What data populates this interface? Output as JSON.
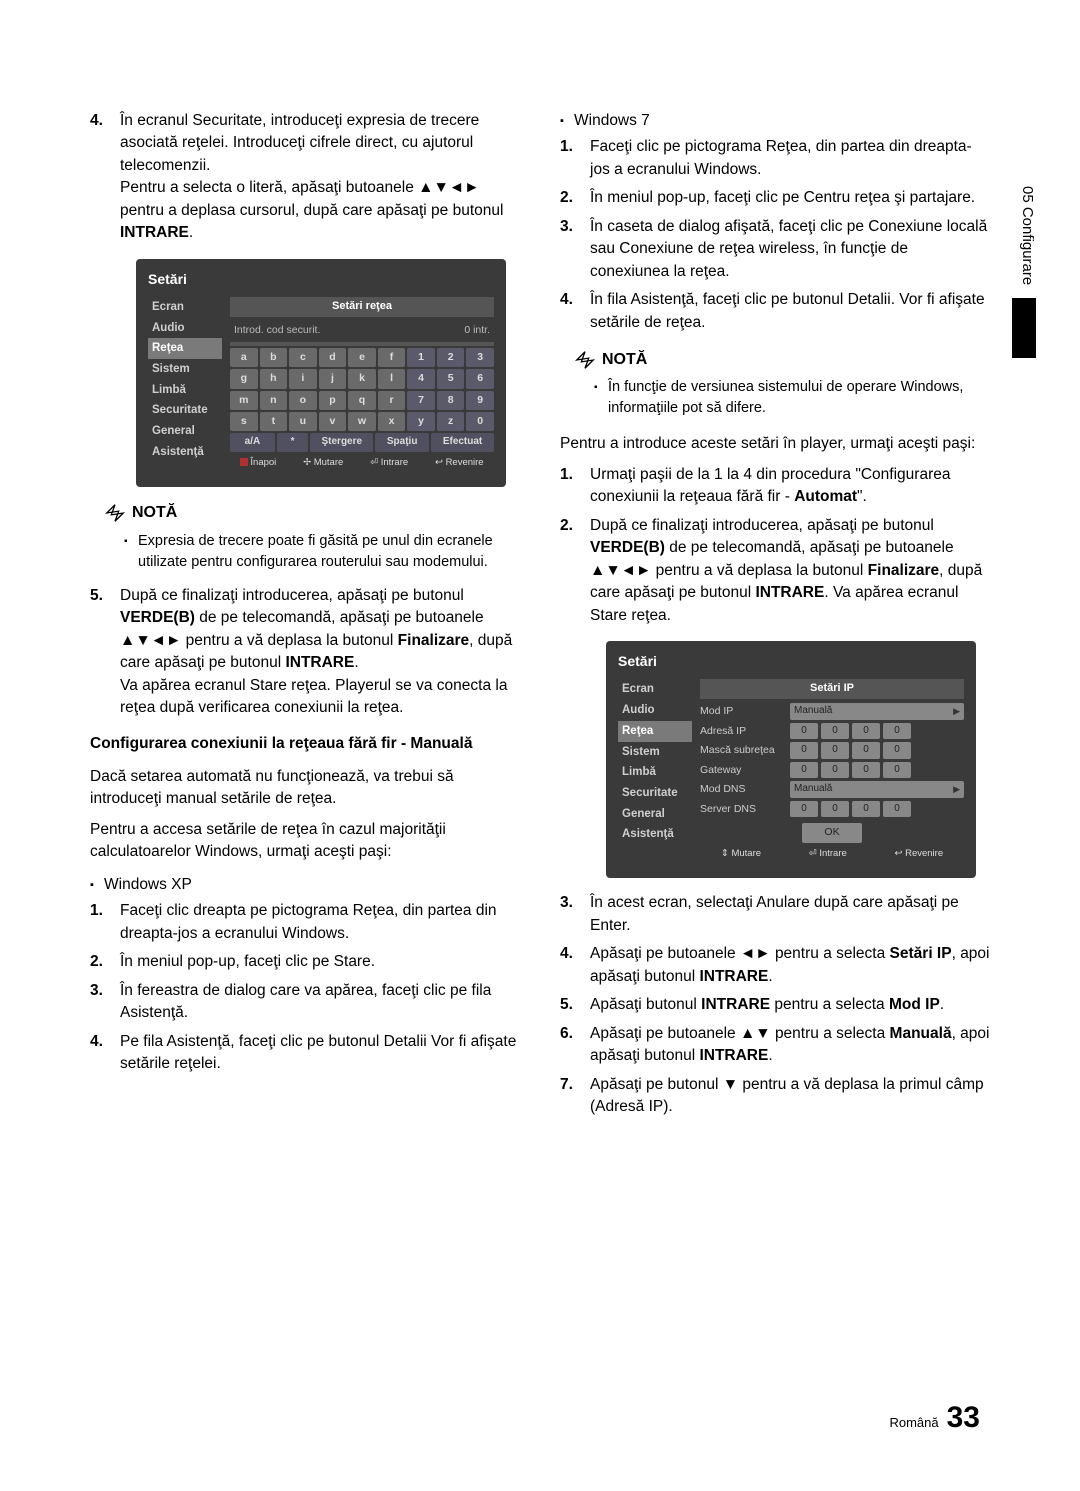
{
  "side_tab": "05  Configurare",
  "footer": {
    "lang": "Română",
    "page": "33"
  },
  "left": {
    "step4_num": "4.",
    "step4": "În ecranul Securitate, introduceţi expresia de trecere asociată reţelei. Introduceţi cifrele direct, cu ajutorul telecomenzii.",
    "step4b": "Pentru a selecta o literă, apăsaţi butoanele ▲▼◄► pentru a deplasa cursorul, după care apăsaţi pe butonul ",
    "step4b_bold": "INTRARE",
    "period": ".",
    "note_label": "NOTĂ",
    "note_body": "Expresia de trecere poate fi găsită pe unul din ecranele utilizate pentru configurarea routerului sau modemului.",
    "step5_num": "5.",
    "step5a": "După ce finalizaţi introducerea, apăsaţi pe butonul ",
    "step5_bold1": "VERDE(B)",
    "step5b": " de pe telecomandă, apăsaţi pe butoanele ▲▼◄► pentru a vă deplasa la butonul ",
    "step5_bold2": "Finalizare",
    "step5c": ", după care apăsaţi pe butonul ",
    "step5_bold3": "INTRARE",
    "step5d": "Va apărea ecranul Stare reţea. Playerul se va conecta la reţea după verificarea conexiunii la reţea.",
    "sub_manual": "Configurarea conexiunii la reţeaua fără fir - Manuală",
    "manual_p1": "Dacă setarea automată nu funcţionează, va trebui să introduceţi manual setările de reţea.",
    "manual_p2": "Pentru a accesa setările de reţea în cazul majorităţii calculatoarelor Windows, urmaţi aceşti paşi:",
    "winxp": "Windows XP",
    "xp1_num": "1.",
    "xp1": "Faceţi clic dreapta pe pictograma Reţea, din partea din dreapta-jos a ecranului Windows.",
    "xp2_num": "2.",
    "xp2": "În meniul pop-up, faceţi clic pe Stare.",
    "xp3_num": "3.",
    "xp3": "În fereastra de dialog care va apărea, faceţi clic pe fila Asistenţă.",
    "xp4_num": "4.",
    "xp4": "Pe fila Asistenţă, faceţi clic pe butonul Detalii Vor fi afişate setările reţelei."
  },
  "right": {
    "win7": "Windows 7",
    "w1_num": "1.",
    "w1": "Faceţi clic pe pictograma Reţea, din partea din dreapta-jos a ecranului Windows.",
    "w2_num": "2.",
    "w2": "În meniul pop-up, faceţi clic pe Centru reţea şi partajare.",
    "w3_num": "3.",
    "w3": "În caseta de dialog afişată, faceţi clic pe Conexiune locală sau Conexiune de reţea wireless, în funcţie de conexiunea la reţea.",
    "w4_num": "4.",
    "w4": "În fila Asistenţă, faceţi clic pe butonul Detalii. Vor fi afişate setările de reţea.",
    "note_label": "NOTĂ",
    "note_body": "În funcţie de versiunea sistemului de operare Windows, informaţiile pot să difere.",
    "intro": "Pentru a introduce aceste setări în player, urmaţi aceşti paşi:",
    "s1_num": "1.",
    "s1a": "Urmaţi paşii de la 1 la 4 din procedura \"Configurarea conexiunii la reţeaua fără fir - ",
    "s1_bold": "Automat",
    "s1b": "\".",
    "s2_num": "2.",
    "s2a": "După ce finalizaţi introducerea, apăsaţi pe butonul ",
    "s2_bold1": "VERDE(B)",
    "s2b": " de pe telecomandă, apăsaţi pe butoanele ▲▼◄► pentru a vă deplasa la butonul ",
    "s2_bold2": "Finalizare",
    "s2c": ", după care apăsaţi pe butonul ",
    "s2_bold3": "INTRARE",
    "s2d": ". Va apărea ecranul Stare reţea.",
    "s3_num": "3.",
    "s3": "În acest ecran, selectaţi Anulare după care apăsaţi pe Enter.",
    "s4_num": "4.",
    "s4a": "Apăsaţi pe butoanele ◄► pentru a selecta ",
    "s4_bold1": "Setări IP",
    "s4b": ", apoi apăsaţi butonul ",
    "s4_bold2": "INTRARE",
    "s5_num": "5.",
    "s5a": "Apăsaţi butonul ",
    "s5_bold1": "INTRARE",
    "s5b": " pentru a selecta ",
    "s5_bold2": "Mod IP",
    "s6_num": "6.",
    "s6a": "Apăsaţi pe butoanele ▲▼ pentru a selecta ",
    "s6_bold1": "Manuală",
    "s6b": ", apoi apăsaţi butonul ",
    "s6_bold2": "INTRARE",
    "s7_num": "7.",
    "s7": "Apăsaţi pe butonul ▼ pentru a vă deplasa la primul câmp (Adresă IP)."
  },
  "panel1": {
    "title": "Setări",
    "menu": [
      "Ecran",
      "Audio",
      "Reţea",
      "Sistem",
      "Limbă",
      "Securitate",
      "General",
      "Asistenţă"
    ],
    "active_index": 2,
    "banner": "Setări reţea",
    "intro_left": "Introd. cod securit.",
    "intro_right": "0 intr.",
    "row1": [
      "a",
      "b",
      "c",
      "d",
      "e",
      "f",
      "1",
      "2",
      "3"
    ],
    "row2": [
      "g",
      "h",
      "i",
      "j",
      "k",
      "l",
      "4",
      "5",
      "6"
    ],
    "row3": [
      "m",
      "n",
      "o",
      "p",
      "q",
      "r",
      "7",
      "8",
      "9"
    ],
    "row4": [
      "s",
      "t",
      "u",
      "v",
      "w",
      "x",
      "y",
      "z",
      "0"
    ],
    "bottom": [
      "a/A",
      "*",
      "Ştergere",
      "Spaţiu",
      "Efectuat"
    ],
    "hints": [
      "a Înapoi",
      "✢ Mutare",
      "⏎ Intrare",
      "↩ Revenire"
    ],
    "colors": {
      "bg": "#3a3a3a",
      "key": "#6a6a6a",
      "key_num": "#5a5a6a"
    }
  },
  "panel2": {
    "title": "Setări",
    "menu": [
      "Ecran",
      "Audio",
      "Reţea",
      "Sistem",
      "Limbă",
      "Securitate",
      "General",
      "Asistenţă"
    ],
    "active_index": 2,
    "banner": "Setări IP",
    "rows": [
      {
        "label": "Mod IP",
        "long": "Manuală"
      },
      {
        "label": "Adresă IP",
        "boxes": [
          "0",
          "0",
          "0",
          "0"
        ]
      },
      {
        "label": "Mască subreţea",
        "boxes": [
          "0",
          "0",
          "0",
          "0"
        ]
      },
      {
        "label": "Gateway",
        "boxes": [
          "0",
          "0",
          "0",
          "0"
        ]
      },
      {
        "label": "Mod DNS",
        "long": "Manuală"
      },
      {
        "label": "Server DNS",
        "boxes": [
          "0",
          "0",
          "0",
          "0"
        ]
      }
    ],
    "ok": "OK",
    "hints": [
      "⇕ Mutare",
      "⏎ Intrare",
      "↩ Revenire"
    ]
  }
}
